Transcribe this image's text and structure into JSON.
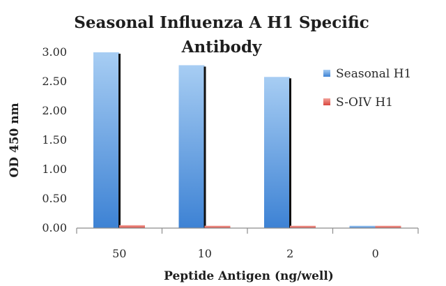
{
  "chart_data": {
    "type": "bar",
    "title": [
      "Seasonal Influenza A H1 Specific",
      "Antibody"
    ],
    "xlabel": "Peptide Antigen (ng/well)",
    "ylabel": "OD 450 nm",
    "categories": [
      "50",
      "10",
      "2",
      "0"
    ],
    "ylim": [
      0,
      3.0
    ],
    "yticks": [
      "0.00",
      "0.50",
      "1.00",
      "1.50",
      "2.00",
      "2.50",
      "3.00"
    ],
    "series": [
      {
        "name": "Seasonal H1",
        "values": [
          3.0,
          2.78,
          2.58,
          0.04
        ],
        "color": "#5b9bd5"
      },
      {
        "name": "S-OIV H1",
        "values": [
          0.05,
          0.04,
          0.04,
          0.04
        ],
        "color": "#e05a52"
      }
    ],
    "legend_position": "right",
    "grid": false
  }
}
